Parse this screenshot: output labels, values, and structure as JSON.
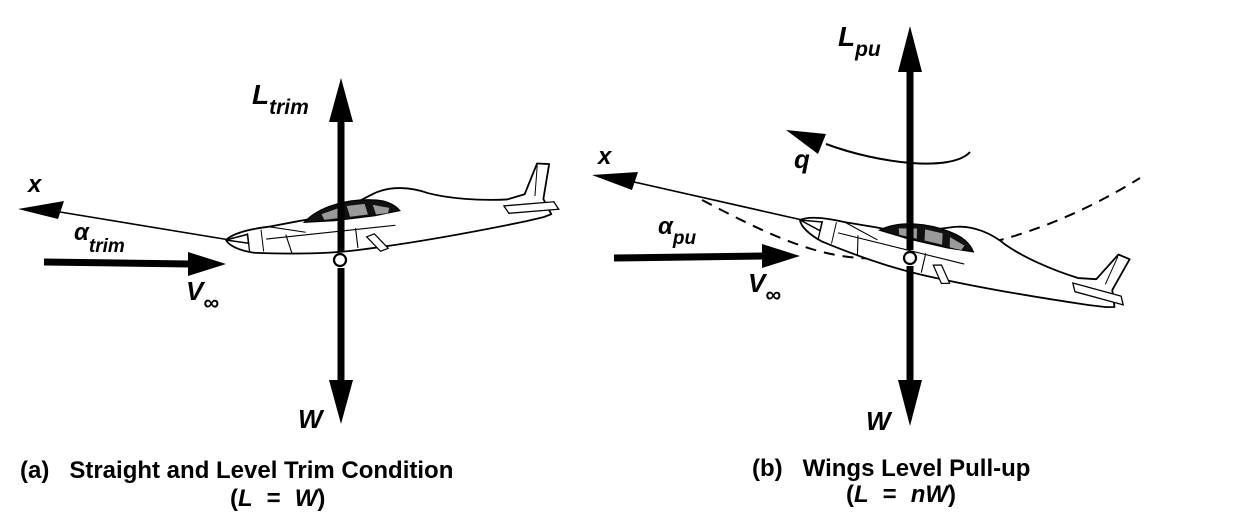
{
  "panel_a": {
    "x_axis": "x",
    "alpha_symbol": "α",
    "alpha_subscript": "trim",
    "lift_symbol": "L",
    "lift_subscript": "trim",
    "velocity_symbol": "V",
    "velocity_subscript": "∞",
    "weight_label": "W",
    "caption_prefix": "(a)",
    "caption_title": "Straight and Level Trim Condition",
    "caption_eq_open": "(",
    "caption_eq_lhs": "L",
    "caption_eq_sign": "=",
    "caption_eq_rhs": "W",
    "caption_eq_close": ")"
  },
  "panel_b": {
    "x_axis": "x",
    "alpha_symbol": "α",
    "alpha_subscript": "pu",
    "lift_symbol": "L",
    "lift_subscript": "pu",
    "pitch_rate_label": "q",
    "velocity_symbol": "V",
    "velocity_subscript": "∞",
    "weight_label": "W",
    "caption_prefix": "(b)",
    "caption_title": "Wings Level Pull-up",
    "caption_eq_open": "(",
    "caption_eq_lhs": "L",
    "caption_eq_sign": "=",
    "caption_eq_rhs": "nW",
    "caption_eq_close": ")"
  },
  "colors": {
    "ink": "#000000",
    "background": "#ffffff"
  }
}
